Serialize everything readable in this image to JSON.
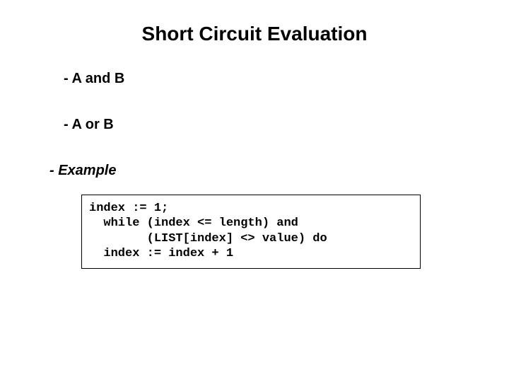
{
  "title": "Short Circuit Evaluation",
  "bullets": {
    "b1": "-  A and B",
    "b2": "-  A or B",
    "b3": "- Example"
  },
  "code": "index := 1;\n  while (index <= length) and\n        (LIST[index] <> value) do\n  index := index + 1",
  "style": {
    "background_color": "#ffffff",
    "text_color": "#000000",
    "title_fontsize": 28,
    "bullet_fontsize": 20,
    "code_fontsize": 17,
    "code_font": "Courier New",
    "border_color": "#000000",
    "slide_width": 720,
    "slide_height": 540
  }
}
